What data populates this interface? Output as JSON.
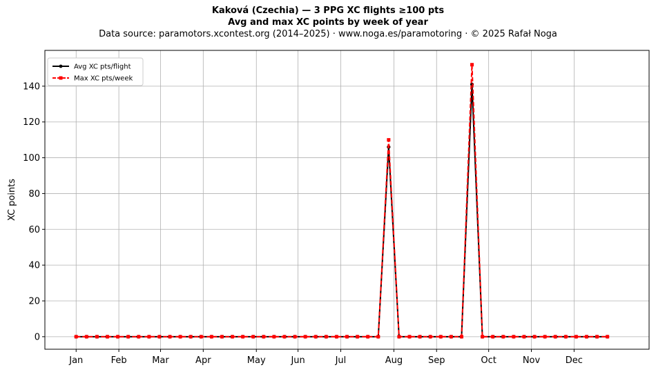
{
  "header": {
    "title_line1": "Kaková (Czechia)  —  3 PPG XC flights ≥100 pts",
    "title_line2": "Avg and max XC points by week of year",
    "subtitle": "Data source: paramotors.xcontest.org (2014–2025)  ·  www.noga.es/paramotoring  ·  © 2025 Rafał Noga"
  },
  "chart_data": {
    "type": "line",
    "title": "Kaková (Czechia)  —  3 PPG XC flights ≥100 pts",
    "subtitle": "Avg and max XC points by week of year",
    "xlabel": "",
    "ylabel": "XC points",
    "x": [
      1,
      2,
      3,
      4,
      5,
      6,
      7,
      8,
      9,
      10,
      11,
      12,
      13,
      14,
      15,
      16,
      17,
      18,
      19,
      20,
      21,
      22,
      23,
      24,
      25,
      26,
      27,
      28,
      29,
      30,
      31,
      32,
      33,
      34,
      35,
      36,
      37,
      38,
      39,
      40,
      41,
      42,
      43,
      44,
      45,
      46,
      47,
      48,
      49,
      50,
      51,
      52
    ],
    "month_ticks": [
      {
        "label": "Jan",
        "week": 1
      },
      {
        "label": "Feb",
        "week": 5.1
      },
      {
        "label": "Mar",
        "week": 9.1
      },
      {
        "label": "Apr",
        "week": 13.2
      },
      {
        "label": "May",
        "week": 18.3
      },
      {
        "label": "Jun",
        "week": 22.3
      },
      {
        "label": "Jul",
        "week": 26.4
      },
      {
        "label": "Aug",
        "week": 31.5
      },
      {
        "label": "Sep",
        "week": 35.6
      },
      {
        "label": "Oct",
        "week": 40.6
      },
      {
        "label": "Nov",
        "week": 44.7
      },
      {
        "label": "Dec",
        "week": 48.8
      }
    ],
    "series": [
      {
        "name": "Avg XC pts/flight",
        "color": "#000000",
        "style": "solid",
        "marker": "circle",
        "values": [
          0,
          0,
          0,
          0,
          0,
          0,
          0,
          0,
          0,
          0,
          0,
          0,
          0,
          0,
          0,
          0,
          0,
          0,
          0,
          0,
          0,
          0,
          0,
          0,
          0,
          0,
          0,
          0,
          0,
          0,
          106,
          0,
          0,
          0,
          0,
          0,
          0,
          0,
          141,
          0,
          0,
          0,
          0,
          0,
          0,
          0,
          0,
          0,
          0,
          0,
          0,
          0
        ]
      },
      {
        "name": "Max XC pts/week",
        "color": "#ff0000",
        "style": "dashed",
        "marker": "square",
        "values": [
          0,
          0,
          0,
          0,
          0,
          0,
          0,
          0,
          0,
          0,
          0,
          0,
          0,
          0,
          0,
          0,
          0,
          0,
          0,
          0,
          0,
          0,
          0,
          0,
          0,
          0,
          0,
          0,
          0,
          0,
          110,
          0,
          0,
          0,
          0,
          0,
          0,
          0,
          152,
          0,
          0,
          0,
          0,
          0,
          0,
          0,
          0,
          0,
          0,
          0,
          0,
          0
        ]
      }
    ],
    "ylim": [
      -7,
      160
    ],
    "xlim": [
      -2,
      56
    ],
    "yticks": [
      0,
      20,
      40,
      60,
      80,
      100,
      120,
      140
    ],
    "grid": true,
    "legend_position": "top-left"
  }
}
